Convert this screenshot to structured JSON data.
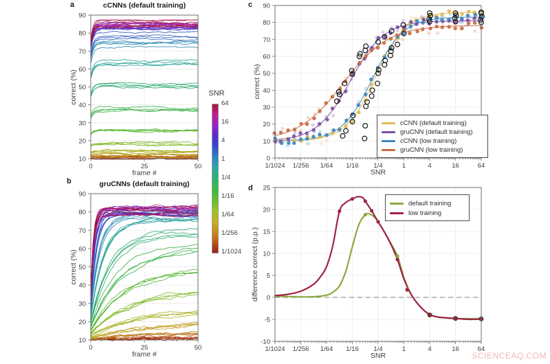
{
  "panels": {
    "a": {
      "label": "a"
    },
    "b": {
      "label": "b"
    },
    "c": {
      "label": "c"
    },
    "d": {
      "label": "d"
    }
  },
  "colorbar": {
    "title": "SNR",
    "tick_labels": [
      "64",
      "16",
      "4",
      "1",
      "1/4",
      "1/16",
      "1/64",
      "1/256",
      "1/1024"
    ],
    "gradient_stops": [
      [
        0.0,
        "#a31638"
      ],
      [
        0.07,
        "#c11e95"
      ],
      [
        0.14,
        "#9623c9"
      ],
      [
        0.21,
        "#5a2ccd"
      ],
      [
        0.28,
        "#3347cf"
      ],
      [
        0.35,
        "#2f7fc1"
      ],
      [
        0.42,
        "#2ba5a8"
      ],
      [
        0.5,
        "#2cb274"
      ],
      [
        0.575,
        "#3aba40"
      ],
      [
        0.65,
        "#66c02c"
      ],
      [
        0.72,
        "#9ec224"
      ],
      [
        0.79,
        "#c3b01f"
      ],
      [
        0.86,
        "#c98e1e"
      ],
      [
        0.92,
        "#c05d18"
      ],
      [
        1.0,
        "#9a1d15"
      ]
    ]
  },
  "watermark": {
    "text": "SCIENCEAQ.COM",
    "color": "#f2b6b6"
  },
  "chart_data": [
    {
      "panel": "a",
      "type": "line",
      "title": "cCNNs (default training)",
      "xlabel": "frame #",
      "ylabel": "correct (%)",
      "xlim": [
        0,
        50
      ],
      "ylim": [
        10,
        90
      ],
      "x_ticks": [
        "0",
        "25",
        "50"
      ],
      "y_ticks": [
        "10",
        "20",
        "30",
        "40",
        "50",
        "60",
        "70",
        "80",
        "90"
      ],
      "snr_log2_levels": [
        -10,
        -9,
        -8,
        -7,
        -6,
        -5,
        -4,
        -3,
        -2,
        -1,
        0,
        1,
        2,
        3,
        4,
        5,
        6
      ],
      "lines_per_level": 4,
      "asymptote_sigmoid": {
        "base": 10,
        "max": 86,
        "mid": -2.2,
        "slope": 1.35
      },
      "rise": {
        "kind": "fast",
        "tau_base": 1.2,
        "tau_amp": 0,
        "tau_mid": 0,
        "tau_slope": 1,
        "drop_frac": 0.2
      },
      "grid": true
    },
    {
      "panel": "b",
      "type": "line",
      "title": "gruCNNs (default training)",
      "xlabel": "frame #",
      "ylabel": "correct (%)",
      "xlim": [
        0,
        50
      ],
      "ylim": [
        10,
        90
      ],
      "x_ticks": [
        "0",
        "25",
        "50"
      ],
      "y_ticks": [
        "10",
        "20",
        "30",
        "40",
        "50",
        "60",
        "70",
        "80",
        "90"
      ],
      "snr_log2_levels": [
        -10,
        -9,
        -8,
        -7,
        -6,
        -5,
        -4,
        -3,
        -2,
        -1,
        0,
        1,
        2,
        3,
        4,
        5,
        6
      ],
      "lines_per_level": 4,
      "asymptote_sigmoid": {
        "base": 10,
        "max": 81,
        "mid": -4.3,
        "slope": 1.4
      },
      "rise": {
        "kind": "slow",
        "tau_base": 1.2,
        "tau_amp": 24,
        "tau_mid": -3,
        "tau_slope": 1.5,
        "drop_frac": 0.88
      },
      "grid": true
    },
    {
      "panel": "c",
      "type": "scatter",
      "xlabel": "SNR",
      "ylabel": "correct (%)",
      "x_log2_range": [
        -10,
        6
      ],
      "ylim": [
        0,
        90
      ],
      "x_tick_labels": [
        "1/1024",
        "1/256",
        "1/64",
        "1/16",
        "1/4",
        "1",
        "4",
        "16",
        "64"
      ],
      "y_ticks": [
        "0",
        "10",
        "20",
        "30",
        "40",
        "50",
        "60",
        "70",
        "80",
        "90"
      ],
      "legend_position": "lower-right",
      "series": [
        {
          "name": "cCNN (default training)",
          "color": "#e2bb55",
          "light": "#f0dfae",
          "fit": {
            "base": 10,
            "max": 86,
            "mid": -2.2,
            "slope": 1.15
          }
        },
        {
          "name": "gruCNN (default training)",
          "color": "#7b4fa6",
          "light": "#c0a8d8",
          "fit": {
            "base": 10,
            "max": 81,
            "mid": -4.15,
            "slope": 1.3
          }
        },
        {
          "name": "cCNN (low training)",
          "color": "#3c87c0",
          "light": "#abcfe8",
          "fit": {
            "base": 10,
            "max": 83.2,
            "mid": -2.45,
            "slope": 1.2
          }
        },
        {
          "name": "gruCNN (low training)",
          "color": "#c96a43",
          "light": "#ecbfa4",
          "fit": {
            "base": 10,
            "max": 78.3,
            "mid": -4.7,
            "slope": 1.75
          }
        }
      ],
      "selected_circles": [
        [
          -5.2,
          33.5
        ],
        [
          -5,
          37.5
        ],
        [
          -5.05,
          39
        ],
        [
          -4.6,
          44
        ],
        [
          -4,
          49.5
        ],
        [
          -4.05,
          51.5
        ],
        [
          -3.45,
          60
        ],
        [
          -3.4,
          61.5
        ],
        [
          -3,
          63.5
        ],
        [
          -2.95,
          66
        ],
        [
          -2,
          68.5
        ],
        [
          -1.5,
          71.5
        ],
        [
          -0.95,
          75
        ],
        [
          -0.05,
          78.5
        ],
        [
          -4.75,
          13
        ],
        [
          -4.5,
          16
        ],
        [
          -4,
          21.5
        ],
        [
          -3.95,
          25
        ],
        [
          -3.05,
          11.5
        ],
        [
          -3,
          19
        ],
        [
          -2.95,
          30.5
        ],
        [
          -2.85,
          33
        ],
        [
          -2.5,
          36.5
        ],
        [
          -2.45,
          40
        ],
        [
          -2.05,
          44
        ],
        [
          -2,
          50
        ],
        [
          -1.95,
          52
        ],
        [
          -1.5,
          55
        ],
        [
          -1.45,
          57.5
        ],
        [
          -1.05,
          60.5
        ],
        [
          -1,
          63
        ],
        [
          -0.95,
          65
        ],
        [
          -0.5,
          67
        ],
        [
          0,
          73.5
        ],
        [
          2,
          80.5
        ],
        [
          1.95,
          82
        ],
        [
          2.05,
          84
        ],
        [
          2,
          85.5
        ],
        [
          4,
          80.5
        ],
        [
          3.95,
          82.5
        ],
        [
          4.05,
          84
        ],
        [
          4,
          85.5
        ],
        [
          6,
          80
        ],
        [
          5.95,
          81.5
        ],
        [
          6.05,
          83.5
        ],
        [
          6,
          85.5
        ],
        [
          6,
          86
        ]
      ]
    },
    {
      "panel": "d",
      "type": "line",
      "xlabel": "SNR",
      "ylabel": "difference correct (p.p.)",
      "x_log2_range": [
        -10,
        6
      ],
      "ylim": [
        -10,
        25
      ],
      "x_tick_labels": [
        "1/1024",
        "1/256",
        "1/64",
        "1/16",
        "1/4",
        "1",
        "4",
        "16",
        "64"
      ],
      "y_ticks": [
        "-10",
        "-5",
        "0",
        "5",
        "10",
        "15",
        "20",
        "25"
      ],
      "zero_line_dashed": true,
      "legend_position": "upper-right",
      "series": [
        {
          "name": "default training",
          "color": "#8aaa3e",
          "points": [
            [
              -10,
              0.3
            ],
            [
              -9,
              0.2
            ],
            [
              -8,
              0.1
            ],
            [
              -7,
              0.15
            ],
            [
              -6,
              0.5
            ],
            [
              -5.5,
              1.2
            ],
            [
              -5,
              2.6
            ],
            [
              -4.5,
              6
            ],
            [
              -4,
              11.5
            ],
            [
              -3.5,
              16.5
            ],
            [
              -3,
              18.8
            ],
            [
              -2.6,
              18.9
            ],
            [
              -2.2,
              18
            ],
            [
              -2,
              17.2
            ],
            [
              -1.5,
              14.8
            ],
            [
              -1,
              12.2
            ],
            [
              -0.5,
              9.4
            ],
            [
              0,
              4.5
            ],
            [
              0.5,
              1.0
            ],
            [
              1,
              -1.2
            ],
            [
              1.5,
              -2.8
            ],
            [
              2,
              -3.9
            ],
            [
              2.5,
              -4.4
            ],
            [
              3,
              -4.6
            ],
            [
              4,
              -4.8
            ],
            [
              5,
              -4.85
            ],
            [
              6,
              -4.8
            ]
          ],
          "markers": [
            [
              -3,
              18.8
            ],
            [
              -2,
              17.2
            ],
            [
              -0.5,
              9.4
            ],
            [
              0.25,
              1.9
            ],
            [
              2,
              -4
            ],
            [
              4,
              -4.8
            ],
            [
              6,
              -4.8
            ]
          ]
        },
        {
          "name": "low training",
          "color": "#a02345",
          "points": [
            [
              -10,
              0.4
            ],
            [
              -9,
              0.7
            ],
            [
              -8,
              1.4
            ],
            [
              -7,
              3
            ],
            [
              -6.5,
              4.6
            ],
            [
              -6,
              7
            ],
            [
              -5.5,
              12
            ],
            [
              -5,
              19.6
            ],
            [
              -4.5,
              21.6
            ],
            [
              -4,
              22.4
            ],
            [
              -3.6,
              22.9
            ],
            [
              -3.2,
              22.7
            ],
            [
              -3,
              21.9
            ],
            [
              -2.5,
              19.7
            ],
            [
              -2,
              17.2
            ],
            [
              -1.5,
              14.8
            ],
            [
              -1,
              12
            ],
            [
              -0.5,
              8.6
            ],
            [
              0,
              4.2
            ],
            [
              0.5,
              1.0
            ],
            [
              1,
              -1.2
            ],
            [
              1.5,
              -2.8
            ],
            [
              2,
              -3.9
            ],
            [
              2.5,
              -4.4
            ],
            [
              3,
              -4.6
            ],
            [
              4,
              -4.8
            ],
            [
              5,
              -5.0
            ],
            [
              6,
              -4.95
            ]
          ],
          "markers": [
            [
              -5,
              19.6
            ],
            [
              -4,
              22.4
            ],
            [
              -3,
              21.9
            ],
            [
              -2.5,
              19.7
            ],
            [
              -2,
              17.2
            ],
            [
              -0.5,
              8.6
            ],
            [
              0.25,
              1.7
            ],
            [
              2,
              -4
            ],
            [
              4,
              -4.8
            ],
            [
              6,
              -4.95
            ]
          ]
        }
      ],
      "ring_markers": [
        [
          2,
          -4
        ],
        [
          4,
          -4.8
        ],
        [
          6,
          -4.9
        ]
      ]
    }
  ]
}
